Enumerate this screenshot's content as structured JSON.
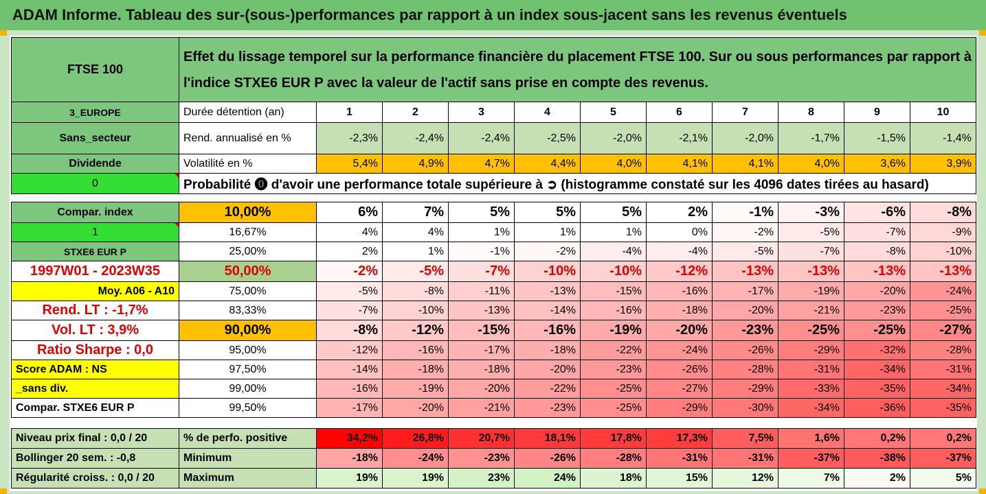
{
  "title": "ADAM Informe. Tableau des sur-(sous-)performances par rapport à un index sous-jacent sans les revenus éventuels",
  "side": {
    "asset": "FTSE 100",
    "region": "3_EUROPE",
    "sector": "Sans_secteur",
    "dividend": "Dividende",
    "zero": "0",
    "compar_index": "Compar. index",
    "one": "1",
    "index_name": "STXE6 EUR P",
    "period": "1997W01 - 2023W35",
    "moy": "Moy. A06 - A10",
    "rend_lt": "Rend. LT :   -1,7%",
    "vol_lt": "Vol. LT :   3,9%",
    "sharpe": "Ratio Sharpe :        0,0",
    "score": "Score ADAM : NS",
    "sans_div": "_sans div.",
    "compar_stx": "Compar. STXE6 EUR P"
  },
  "header_text": "Effet du lissage temporel sur la performance financière du placement FTSE 100. Sur ou sous performances par rapport à l'indice STXE6 EUR P avec la valeur de l'actif sans prise en compte des revenus.",
  "row_labels": {
    "duree": "Durée détention (an)",
    "rend": "Rend. annualisé en %",
    "vol": "Volatilité en %",
    "proba": "Probabilité ⓿ d'avoir une performance totale supérieure à ➲ (histogramme constaté sur les 4096 dates tirées au hasard)"
  },
  "years": [
    "1",
    "2",
    "3",
    "4",
    "5",
    "6",
    "7",
    "8",
    "9",
    "10"
  ],
  "rend": [
    "-2,3%",
    "-2,4%",
    "-2,4%",
    "-2,5%",
    "-2,0%",
    "-2,1%",
    "-2,0%",
    "-1,7%",
    "-1,5%",
    "-1,4%"
  ],
  "vol": [
    "5,4%",
    "4,9%",
    "4,7%",
    "4,4%",
    "4,0%",
    "4,1%",
    "4,1%",
    "4,0%",
    "3,6%",
    "3,9%"
  ],
  "prob_rows": [
    {
      "p": "10,00%",
      "v": [
        "6%",
        "7%",
        "5%",
        "5%",
        "5%",
        "2%",
        "-1%",
        "-3%",
        "-6%",
        "-8%"
      ]
    },
    {
      "p": "16,67%",
      "v": [
        "4%",
        "4%",
        "1%",
        "1%",
        "1%",
        "0%",
        "-2%",
        "-5%",
        "-7%",
        "-9%"
      ]
    },
    {
      "p": "25,00%",
      "v": [
        "2%",
        "1%",
        "-1%",
        "-2%",
        "-4%",
        "-4%",
        "-5%",
        "-7%",
        "-8%",
        "-10%"
      ]
    },
    {
      "p": "50,00%",
      "v": [
        "-2%",
        "-5%",
        "-7%",
        "-10%",
        "-10%",
        "-12%",
        "-13%",
        "-13%",
        "-13%",
        "-13%"
      ]
    },
    {
      "p": "75,00%",
      "v": [
        "-5%",
        "-8%",
        "-11%",
        "-13%",
        "-15%",
        "-16%",
        "-17%",
        "-19%",
        "-20%",
        "-24%"
      ]
    },
    {
      "p": "83,33%",
      "v": [
        "-7%",
        "-10%",
        "-13%",
        "-14%",
        "-16%",
        "-18%",
        "-20%",
        "-21%",
        "-23%",
        "-25%"
      ]
    },
    {
      "p": "90,00%",
      "v": [
        "-8%",
        "-12%",
        "-15%",
        "-16%",
        "-19%",
        "-20%",
        "-23%",
        "-25%",
        "-25%",
        "-27%"
      ]
    },
    {
      "p": "95,00%",
      "v": [
        "-12%",
        "-16%",
        "-17%",
        "-18%",
        "-22%",
        "-24%",
        "-26%",
        "-29%",
        "-32%",
        "-28%"
      ]
    },
    {
      "p": "97,50%",
      "v": [
        "-14%",
        "-18%",
        "-18%",
        "-20%",
        "-23%",
        "-26%",
        "-28%",
        "-31%",
        "-34%",
        "-31%"
      ]
    },
    {
      "p": "99,00%",
      "v": [
        "-16%",
        "-19%",
        "-20%",
        "-22%",
        "-25%",
        "-27%",
        "-29%",
        "-33%",
        "-35%",
        "-34%"
      ]
    },
    {
      "p": "99,50%",
      "v": [
        "-17%",
        "-20%",
        "-21%",
        "-23%",
        "-25%",
        "-29%",
        "-30%",
        "-34%",
        "-36%",
        "-35%"
      ]
    }
  ],
  "bottom": {
    "niveau": "Niveau prix final : 0,0 / 20",
    "bollinger": "Bollinger 20 sem. :  -0,8",
    "regularite": "Régularité croiss. : 0,0 / 20",
    "pos_label": "% de perfo. positive",
    "min_label": "Minimum",
    "max_label": "Maximum",
    "pos": [
      "34,2%",
      "26,8%",
      "20,7%",
      "18,1%",
      "17,8%",
      "17,3%",
      "7,5%",
      "1,6%",
      "0,2%",
      "0,2%"
    ],
    "min": [
      "-18%",
      "-24%",
      "-23%",
      "-26%",
      "-28%",
      "-31%",
      "-31%",
      "-37%",
      "-38%",
      "-37%"
    ],
    "max": [
      "19%",
      "19%",
      "23%",
      "24%",
      "18%",
      "15%",
      "12%",
      "7%",
      "2%",
      "5%"
    ]
  }
}
